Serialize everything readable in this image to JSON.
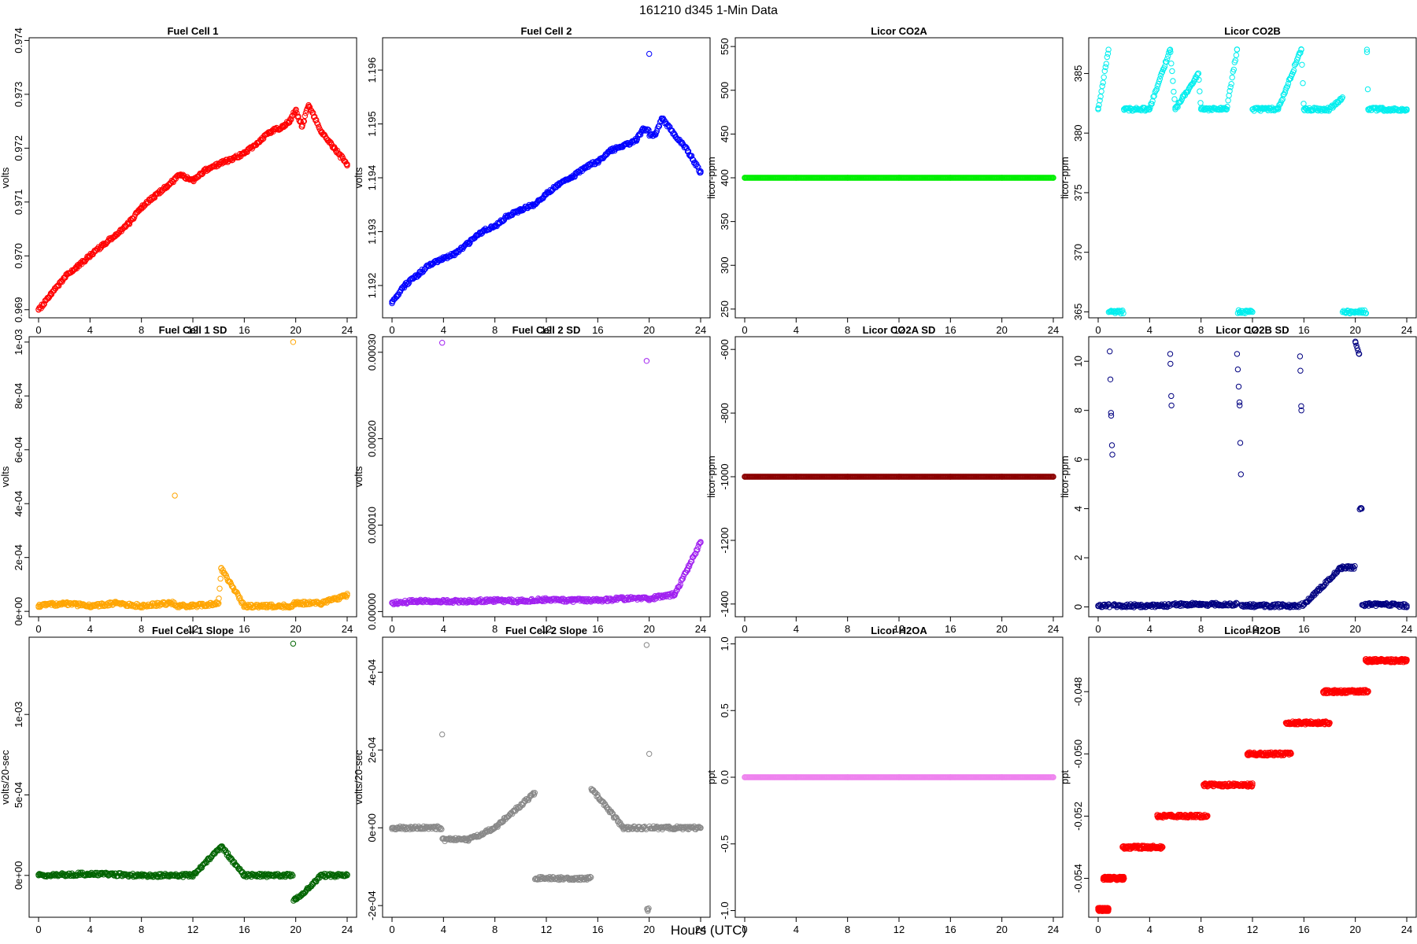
{
  "figure": {
    "title": "161210   d345   1-Min Data",
    "xlabel": "Hours (UTC)"
  },
  "chart_data": [
    {
      "type": "scatter",
      "title": "Fuel Cell 1",
      "ylabel": "volts",
      "color": "#ff0000",
      "xlim": [
        0,
        24
      ],
      "xticks": [
        0,
        4,
        8,
        12,
        16,
        20,
        24
      ],
      "ylim": [
        0.96885,
        0.97405
      ],
      "yticks": [
        "0.969",
        "0.970",
        "0.971",
        "0.972",
        "0.973",
        "0.974"
      ],
      "series": [
        {
          "x": [
            0,
            1,
            2,
            3,
            4,
            5,
            6,
            7,
            8,
            9,
            10,
            11,
            12,
            13,
            14,
            15,
            16,
            17,
            18,
            19,
            19.5,
            20,
            20.5,
            21,
            22,
            23,
            24
          ],
          "y": [
            0.969,
            0.9693,
            0.9696,
            0.9698,
            0.97,
            0.9702,
            0.9704,
            0.9706,
            0.9709,
            0.9711,
            0.9713,
            0.9715,
            0.9714,
            0.9716,
            0.9717,
            0.9718,
            0.9719,
            0.9721,
            0.9723,
            0.9724,
            0.9725,
            0.9727,
            0.9724,
            0.9728,
            0.9723,
            0.972,
            0.9717
          ]
        }
      ]
    },
    {
      "type": "scatter",
      "title": "Fuel Cell 2",
      "ylabel": "volts",
      "color": "#0000ff",
      "xlim": [
        0,
        24
      ],
      "xticks": [
        0,
        4,
        8,
        12,
        16,
        20,
        24
      ],
      "ylim": [
        1.1914,
        1.1966
      ],
      "yticks": [
        "1.192",
        "1.193",
        "1.194",
        "1.195",
        "1.196"
      ],
      "series": [
        {
          "x": [
            0,
            1,
            2,
            3,
            4,
            5,
            6,
            7,
            8,
            9,
            10,
            11,
            12,
            13,
            14,
            15,
            16,
            17,
            18,
            19,
            19.5,
            20,
            20.5,
            21,
            22,
            23,
            24
          ],
          "y": [
            1.1917,
            1.192,
            1.1922,
            1.1924,
            1.1925,
            1.1926,
            1.1928,
            1.193,
            1.1931,
            1.1933,
            1.1934,
            1.1935,
            1.1937,
            1.1939,
            1.194,
            1.1942,
            1.1943,
            1.1945,
            1.1946,
            1.1947,
            1.1949,
            1.1963,
            1.1948,
            1.1951,
            1.1948,
            1.1945,
            1.1941
          ]
        }
      ]
    },
    {
      "type": "scatter",
      "title": "Licor CO2A",
      "ylabel": "licor-ppm",
      "color": "#00ee00",
      "xlim": [
        0,
        24
      ],
      "xticks": [
        0,
        4,
        8,
        12,
        16,
        20,
        24
      ],
      "ylim": [
        240,
        560
      ],
      "yticks": [
        "250",
        "300",
        "350",
        "400",
        "450",
        "500",
        "550"
      ],
      "series": [
        {
          "x": [
            0,
            4,
            8,
            12,
            16,
            20,
            24
          ],
          "y": [
            400,
            400,
            400,
            400,
            400,
            400,
            400
          ]
        }
      ]
    },
    {
      "type": "scatter",
      "title": "Licor CO2B",
      "ylabel": "licor-ppm",
      "color": "#00eeee",
      "xlim": [
        0,
        24
      ],
      "xticks": [
        0,
        4,
        8,
        12,
        16,
        20,
        24
      ],
      "ylim": [
        364.5,
        388
      ],
      "yticks": [
        "365",
        "370",
        "375",
        "380",
        "385"
      ],
      "series": [
        {
          "x": [
            0,
            0.8,
            1,
            2,
            4,
            5.6,
            6,
            7.8,
            8,
            10,
            10.8,
            11,
            12,
            14,
            15.8,
            16,
            18,
            19,
            20.2,
            20.9,
            21,
            22,
            24
          ],
          "y": [
            382,
            387,
            365,
            382,
            382,
            387,
            382,
            385,
            382,
            382,
            387,
            365,
            382,
            382,
            387,
            382,
            382,
            383,
            365,
            387,
            382,
            382,
            382
          ]
        }
      ]
    },
    {
      "type": "scatter",
      "title": "Fuel Cell 1 SD",
      "ylabel": "volts",
      "color": "#ffa500",
      "xlim": [
        0,
        24
      ],
      "xticks": [
        0,
        4,
        8,
        12,
        16,
        20,
        24
      ],
      "ylim": [
        -2e-05,
        0.00102
      ],
      "yticks": [
        "0e+00",
        "2e-04",
        "4e-04",
        "6e-04",
        "8e-04",
        "1e-03"
      ],
      "series": [
        {
          "x": [
            0,
            2,
            4,
            6,
            8,
            10,
            10.6,
            12,
            14,
            14.2,
            16,
            18,
            19.8,
            20,
            22,
            24
          ],
          "y": [
            2e-05,
            3e-05,
            2e-05,
            3e-05,
            2e-05,
            3e-05,
            0.00043,
            2e-05,
            3e-05,
            0.00016,
            2e-05,
            2e-05,
            0.001,
            3e-05,
            3e-05,
            6e-05
          ]
        }
      ]
    },
    {
      "type": "scatter",
      "title": "Fuel Cell 2 SD",
      "ylabel": "volts",
      "color": "#a020f0",
      "xlim": [
        0,
        24
      ],
      "xticks": [
        0,
        4,
        8,
        12,
        16,
        20,
        24
      ],
      "ylim": [
        -6e-06,
        0.000318
      ],
      "yticks": [
        "0.00000",
        "0.00010",
        "0.00020",
        "0.00030"
      ],
      "series": [
        {
          "x": [
            0,
            2,
            3.9,
            6,
            8,
            10,
            12,
            14,
            16,
            18,
            19.8,
            20,
            22,
            23,
            24
          ],
          "y": [
            1e-05,
            1.2e-05,
            0.000311,
            1.2e-05,
            1.3e-05,
            1.2e-05,
            1.4e-05,
            1.3e-05,
            1.3e-05,
            1.5e-05,
            0.00029,
            1.5e-05,
            2e-05,
            5e-05,
            8e-05
          ]
        }
      ]
    },
    {
      "type": "scatter",
      "title": "Licor CO2A SD",
      "ylabel": "licor-ppm",
      "color": "#8b0000",
      "xlim": [
        0,
        24
      ],
      "xticks": [
        0,
        4,
        8,
        12,
        16,
        20,
        24
      ],
      "ylim": [
        -1440,
        -560
      ],
      "yticks": [
        "-1400",
        "-1200",
        "-1000",
        "-800",
        "-600"
      ],
      "series": [
        {
          "x": [
            0,
            4,
            8,
            12,
            16,
            20,
            24
          ],
          "y": [
            -1000,
            -1000,
            -1000,
            -1000,
            -1000,
            -1000,
            -1000
          ]
        }
      ]
    },
    {
      "type": "scatter",
      "title": "Licor CO2B SD",
      "ylabel": "licor-ppm",
      "color": "#000080",
      "xlim": [
        0,
        24
      ],
      "xticks": [
        0,
        4,
        8,
        12,
        16,
        20,
        24
      ],
      "ylim": [
        -0.4,
        11
      ],
      "yticks": [
        "0",
        "2",
        "4",
        "6",
        "8",
        "10"
      ],
      "series": [
        {
          "x": [
            0,
            0.9,
            1,
            1.1,
            4,
            5.6,
            5.7,
            8,
            10.8,
            11,
            11.1,
            12,
            15.7,
            15.8,
            16,
            18.9,
            20,
            20.3,
            20.5,
            22,
            24
          ],
          "y": [
            0.05,
            10.4,
            7.9,
            6.2,
            0.05,
            10.3,
            8.2,
            0.1,
            10.3,
            8.2,
            5.4,
            0.05,
            10.2,
            8.0,
            0.1,
            1.6,
            10.8,
            10.3,
            4.0,
            0.1,
            0.05
          ]
        }
      ]
    },
    {
      "type": "scatter",
      "title": "Fuel Cell 1 Slope",
      "ylabel": "volts/20-sec",
      "color": "#006400",
      "xlim": [
        0,
        24
      ],
      "xticks": [
        0,
        4,
        8,
        12,
        16,
        20,
        24
      ],
      "ylim": [
        -0.00026,
        0.00148
      ],
      "yticks": [
        "0e+00",
        "5e-04",
        "1e-03"
      ],
      "series": [
        {
          "x": [
            0,
            4,
            8,
            12,
            14.2,
            16,
            19.8,
            20,
            22,
            24
          ],
          "y": [
            0,
            1e-05,
            0,
            0,
            0.00018,
            0,
            0.00144,
            -0.00015,
            0,
            0
          ]
        }
      ]
    },
    {
      "type": "scatter",
      "title": "Fuel Cell 2 Slope",
      "ylabel": "volts/20-sec",
      "color": "#888888",
      "xlim": [
        0,
        24
      ],
      "xticks": [
        0,
        4,
        8,
        12,
        16,
        20,
        24
      ],
      "ylim": [
        -0.00023,
        0.00049
      ],
      "yticks": [
        "-2e-04",
        "0e+00",
        "2e-04",
        "4e-04"
      ],
      "series": [
        {
          "x": [
            0,
            3.9,
            6,
            8,
            11.1,
            14,
            15.5,
            18,
            19.8,
            19.9,
            20,
            22,
            24
          ],
          "y": [
            0,
            0.00024,
            -3e-05,
            0,
            9e-05,
            -0.00013,
            0.0001,
            0,
            0.00047,
            -0.00021,
            0.00019,
            0,
            0
          ]
        }
      ]
    },
    {
      "type": "scatter",
      "title": "Licor H2OA",
      "ylabel": "ppt",
      "color": "#ee82ee",
      "xlim": [
        0,
        24
      ],
      "xticks": [
        0,
        4,
        8,
        12,
        16,
        20,
        24
      ],
      "ylim": [
        -1.05,
        1.05
      ],
      "yticks": [
        "-1.0",
        "-0.5",
        "0.0",
        "0.5",
        "1.0"
      ],
      "series": [
        {
          "x": [
            0,
            4,
            8,
            12,
            16,
            20,
            24
          ],
          "y": [
            0,
            0,
            0,
            0,
            0,
            0,
            0
          ]
        }
      ]
    },
    {
      "type": "scatter",
      "title": "Licor H2OB",
      "ylabel": "ppt",
      "color": "#ff0000",
      "xlim": [
        0,
        24
      ],
      "xticks": [
        0,
        4,
        8,
        12,
        16,
        20,
        24
      ],
      "ylim": [
        -0.05525,
        -0.04625
      ],
      "yticks": [
        "-0.054",
        "-0.052",
        "-0.050",
        "-0.048"
      ],
      "series": [
        {
          "x": [
            0,
            0.8
          ],
          "y": [
            -0.055,
            -0.055
          ]
        },
        {
          "x": [
            0.4,
            2.0
          ],
          "y": [
            -0.054,
            -0.054
          ]
        },
        {
          "x": [
            1.9,
            5.0
          ],
          "y": [
            -0.053,
            -0.053
          ]
        },
        {
          "x": [
            4.6,
            8.5
          ],
          "y": [
            -0.052,
            -0.052
          ]
        },
        {
          "x": [
            8.2,
            12.0
          ],
          "y": [
            -0.051,
            -0.051
          ]
        },
        {
          "x": [
            11.6,
            15.0
          ],
          "y": [
            -0.05,
            -0.05
          ]
        },
        {
          "x": [
            14.6,
            18.0
          ],
          "y": [
            -0.049,
            -0.049
          ]
        },
        {
          "x": [
            17.5,
            21.0
          ],
          "y": [
            -0.048,
            -0.048
          ]
        },
        {
          "x": [
            20.8,
            24.0
          ],
          "y": [
            -0.047,
            -0.047
          ]
        }
      ]
    }
  ]
}
